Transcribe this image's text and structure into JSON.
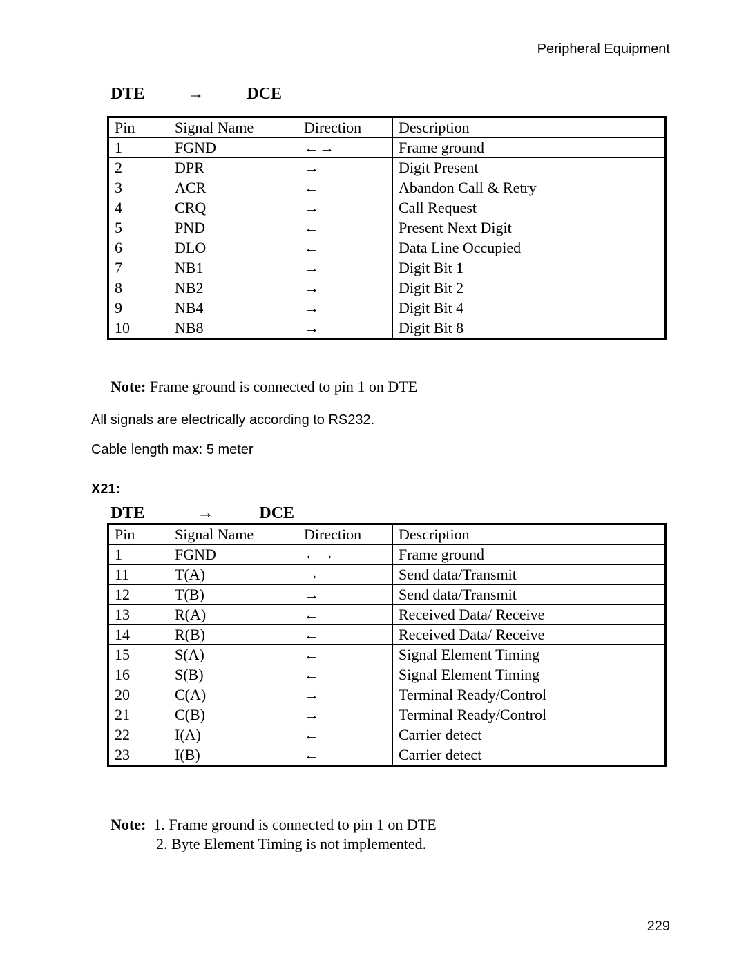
{
  "header": {
    "title": "Peripheral Equipment"
  },
  "section1": {
    "dte_label": "DTE",
    "arrow": "→",
    "dce_label": "DCE",
    "columns": [
      "Pin",
      "Signal Name",
      "Direction",
      "Description"
    ],
    "rows": [
      {
        "pin": "1",
        "sig": "FGND",
        "dir": "←→",
        "desc": "Frame ground"
      },
      {
        "pin": "2",
        "sig": "DPR",
        "dir": "→",
        "desc": "Digit Present"
      },
      {
        "pin": "3",
        "sig": "ACR",
        "dir": "←",
        "desc": "Abandon Call & Retry"
      },
      {
        "pin": "4",
        "sig": "CRQ",
        "dir": "→",
        "desc": "Call Request"
      },
      {
        "pin": "5",
        "sig": "PND",
        "dir": "←",
        "desc": "Present Next Digit"
      },
      {
        "pin": "6",
        "sig": "DLO",
        "dir": "←",
        "desc": "Data Line Occupied"
      },
      {
        "pin": "7",
        "sig": "NB1",
        "dir": "→",
        "desc": "Digit Bit 1"
      },
      {
        "pin": "8",
        "sig": "NB2",
        "dir": "→",
        "desc": "Digit Bit 2"
      },
      {
        "pin": "9",
        "sig": "NB4",
        "dir": "→",
        "desc": "Digit Bit 4"
      },
      {
        "pin": "10",
        "sig": "NB8",
        "dir": "→",
        "desc": "Digit Bit 8"
      }
    ],
    "note_label": "Note:",
    "note_text": " Frame ground is connected to pin 1 on DTE",
    "text1": "All signals are electrically according to RS232.",
    "text2": "Cable length max: 5 meter"
  },
  "section2": {
    "label": "X21:",
    "dte_label": "DTE",
    "arrow": "→",
    "dce_label": "DCE",
    "columns": [
      "Pin",
      "Signal Name",
      "Direction",
      "Description"
    ],
    "rows": [
      {
        "pin": "1",
        "sig": "FGND",
        "dir": "←→",
        "desc": "Frame ground"
      },
      {
        "pin": "11",
        "sig": "T(A)",
        "dir": "→",
        "desc": "Send data/Transmit"
      },
      {
        "pin": "12",
        "sig": "T(B)",
        "dir": "→",
        "desc": "Send data/Transmit"
      },
      {
        "pin": "13",
        "sig": "R(A)",
        "dir": "←",
        "desc": "Received Data/ Receive"
      },
      {
        "pin": "14",
        "sig": "R(B)",
        "dir": "←",
        "desc": "Received Data/ Receive"
      },
      {
        "pin": "15",
        "sig": "S(A)",
        "dir": "←",
        "desc": "Signal Element Timing"
      },
      {
        "pin": "16",
        "sig": "S(B)",
        "dir": "←",
        "desc": "Signal Element Timing"
      },
      {
        "pin": "20",
        "sig": "C(A)",
        "dir": "→",
        "desc": "Terminal Ready/Control"
      },
      {
        "pin": "21",
        "sig": "C(B)",
        "dir": "→",
        "desc": "Terminal Ready/Control"
      },
      {
        "pin": "22",
        "sig": "I(A)",
        "dir": "←",
        "desc": "Carrier detect"
      },
      {
        "pin": "23",
        "sig": "I(B)",
        "dir": "←",
        "desc": "Carrier detect"
      }
    ],
    "note_label": "Note:",
    "note_line1": "1. Frame ground is connected to pin 1 on DTE",
    "note_line2": "2. Byte Element Timing is not implemented."
  },
  "page_number": "229"
}
